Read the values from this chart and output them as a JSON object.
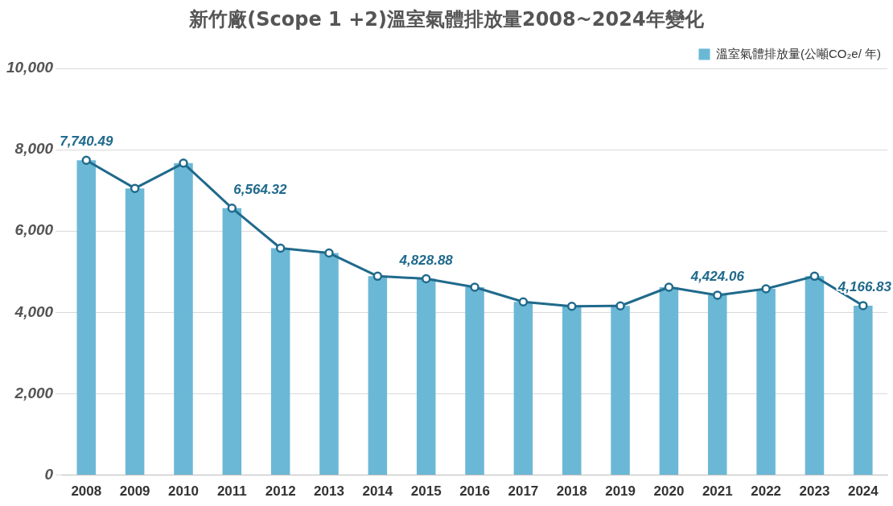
{
  "chart_data": {
    "type": "bar",
    "title": "新竹廠(Scope 1 +2)溫室氣體排放量2008~2024年變化",
    "categories": [
      "2008",
      "2009",
      "2010",
      "2011",
      "2012",
      "2013",
      "2014",
      "2015",
      "2016",
      "2017",
      "2018",
      "2019",
      "2020",
      "2021",
      "2022",
      "2023",
      "2024"
    ],
    "series": [
      {
        "name": "溫室氣體排放量(公噸CO₂e/ 年)",
        "color": "#6bb8d6",
        "values": [
          7740.49,
          7050,
          7670,
          6564.32,
          5580,
          5460,
          4890,
          4828.88,
          4620,
          4260,
          4150,
          4160,
          4620,
          4424.06,
          4580,
          4890,
          4166.83
        ]
      },
      {
        "type": "line",
        "color": "#206a8c",
        "marker": "circle",
        "values": [
          7740.49,
          7050,
          7670,
          6564.32,
          5580,
          5460,
          4890,
          4828.88,
          4620,
          4260,
          4150,
          4160,
          4620,
          4424.06,
          4580,
          4890,
          4166.83
        ],
        "value_labels": [
          "7,740.49",
          null,
          null,
          "6,564.32",
          null,
          null,
          null,
          "4,828.88",
          null,
          null,
          null,
          null,
          null,
          "4,424.06",
          null,
          null,
          "4,166.83"
        ]
      }
    ],
    "ylim": [
      0,
      10000
    ],
    "yticks": [
      0,
      {
        "value": 2000,
        "label": "2,000"
      },
      {
        "value": 4000,
        "label": "4,000"
      },
      {
        "value": 6000,
        "label": "6,000"
      },
      {
        "value": 8000,
        "label": "8,000"
      },
      {
        "value": 10000,
        "label": "10,000"
      }
    ],
    "grid": "y",
    "legend": "top right"
  }
}
